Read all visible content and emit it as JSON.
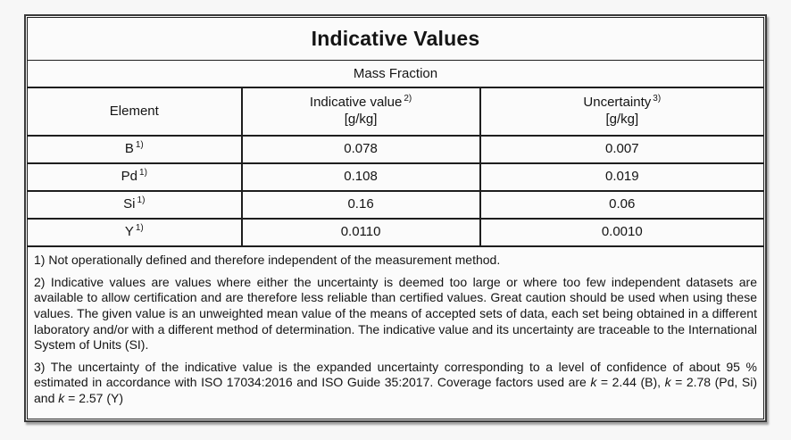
{
  "document": {
    "title": "Indicative Values",
    "subtitle": "Mass Fraction"
  },
  "table": {
    "headers": {
      "element": "Element",
      "indicative_label": "Indicative value",
      "indicative_sup": "2)",
      "indicative_unit": "[g/kg]",
      "uncertainty_label": "Uncertainty",
      "uncertainty_sup": "3)",
      "uncertainty_unit": "[g/kg]"
    },
    "rows": [
      {
        "element": "B",
        "sup": "1)",
        "indicative_value": "0.078",
        "uncertainty": "0.007"
      },
      {
        "element": "Pd",
        "sup": "1)",
        "indicative_value": "0.108",
        "uncertainty": "0.019"
      },
      {
        "element": "Si",
        "sup": "1)",
        "indicative_value": "0.16",
        "uncertainty": "0.06"
      },
      {
        "element": "Y",
        "sup": "1)",
        "indicative_value": "0.0110",
        "uncertainty": "0.0010"
      }
    ]
  },
  "footnotes": {
    "note1": "1) Not operationally defined and therefore independent of the measurement method.",
    "note2": "2) Indicative values are values where either the uncertainty is deemed too large or where too few independent datasets are available to allow certification and are therefore less reliable than certified values. Great caution should be used when using these values. The given value is an unweighted mean value of the means of accepted sets of data, each set being obtained in a different laboratory and/or with a different method of determination. The indicative value and its uncertainty are traceable to the International System of Units (SI).",
    "note3": {
      "lead": "3) The uncertainty of the indicative value is the expanded uncertainty corresponding to a level of confidence of about 95 % estimated in accordance with ISO 17034:2016 and ISO Guide 35:2017. Coverage factors used are ",
      "k1": "k",
      "v1": " = 2.44 (B), ",
      "k2": "k",
      "v2": " = 2.78 (Pd, Si) and ",
      "k3": "k",
      "v3": " = 2.57 (Y)"
    }
  },
  "colors": {
    "page_bg": "#f7f7f7",
    "table_bg": "#fbfbfb",
    "border": "#1e1e1e",
    "text": "#141414"
  }
}
